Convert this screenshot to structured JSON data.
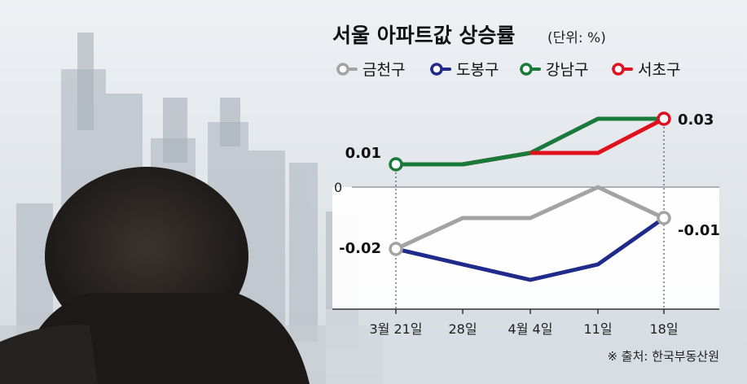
{
  "title": "서울 아파트값 상승률",
  "unit": "(단위: %)",
  "source": "※ 출처: 한국부동산원",
  "colors": {
    "금천구": "#a3a3a3",
    "도봉구": "#1f2a8a",
    "강남구": "#1a7a3a",
    "서초구": "#e0101e"
  },
  "chart_data": {
    "type": "line",
    "categories": [
      "3월 21일",
      "28일",
      "4월 4일",
      "11일",
      "18일"
    ],
    "series": [
      {
        "name": "금천구",
        "values": [
          -0.02,
          -0.01,
          -0.01,
          0.0,
          -0.01
        ]
      },
      {
        "name": "도봉구",
        "values": [
          -0.02,
          -0.025,
          -0.03,
          -0.025,
          -0.01
        ]
      },
      {
        "name": "강남구",
        "values": [
          0.01,
          0.01,
          0.015,
          0.03,
          0.03
        ]
      },
      {
        "name": "서초구",
        "values": [
          0.01,
          0.01,
          0.015,
          0.015,
          0.03
        ]
      }
    ],
    "zero_label": "0",
    "value_labels": {
      "start_top": "0.01",
      "end_top": "0.03",
      "start_bottom": "-0.02",
      "end_bottom": "-0.01"
    }
  }
}
